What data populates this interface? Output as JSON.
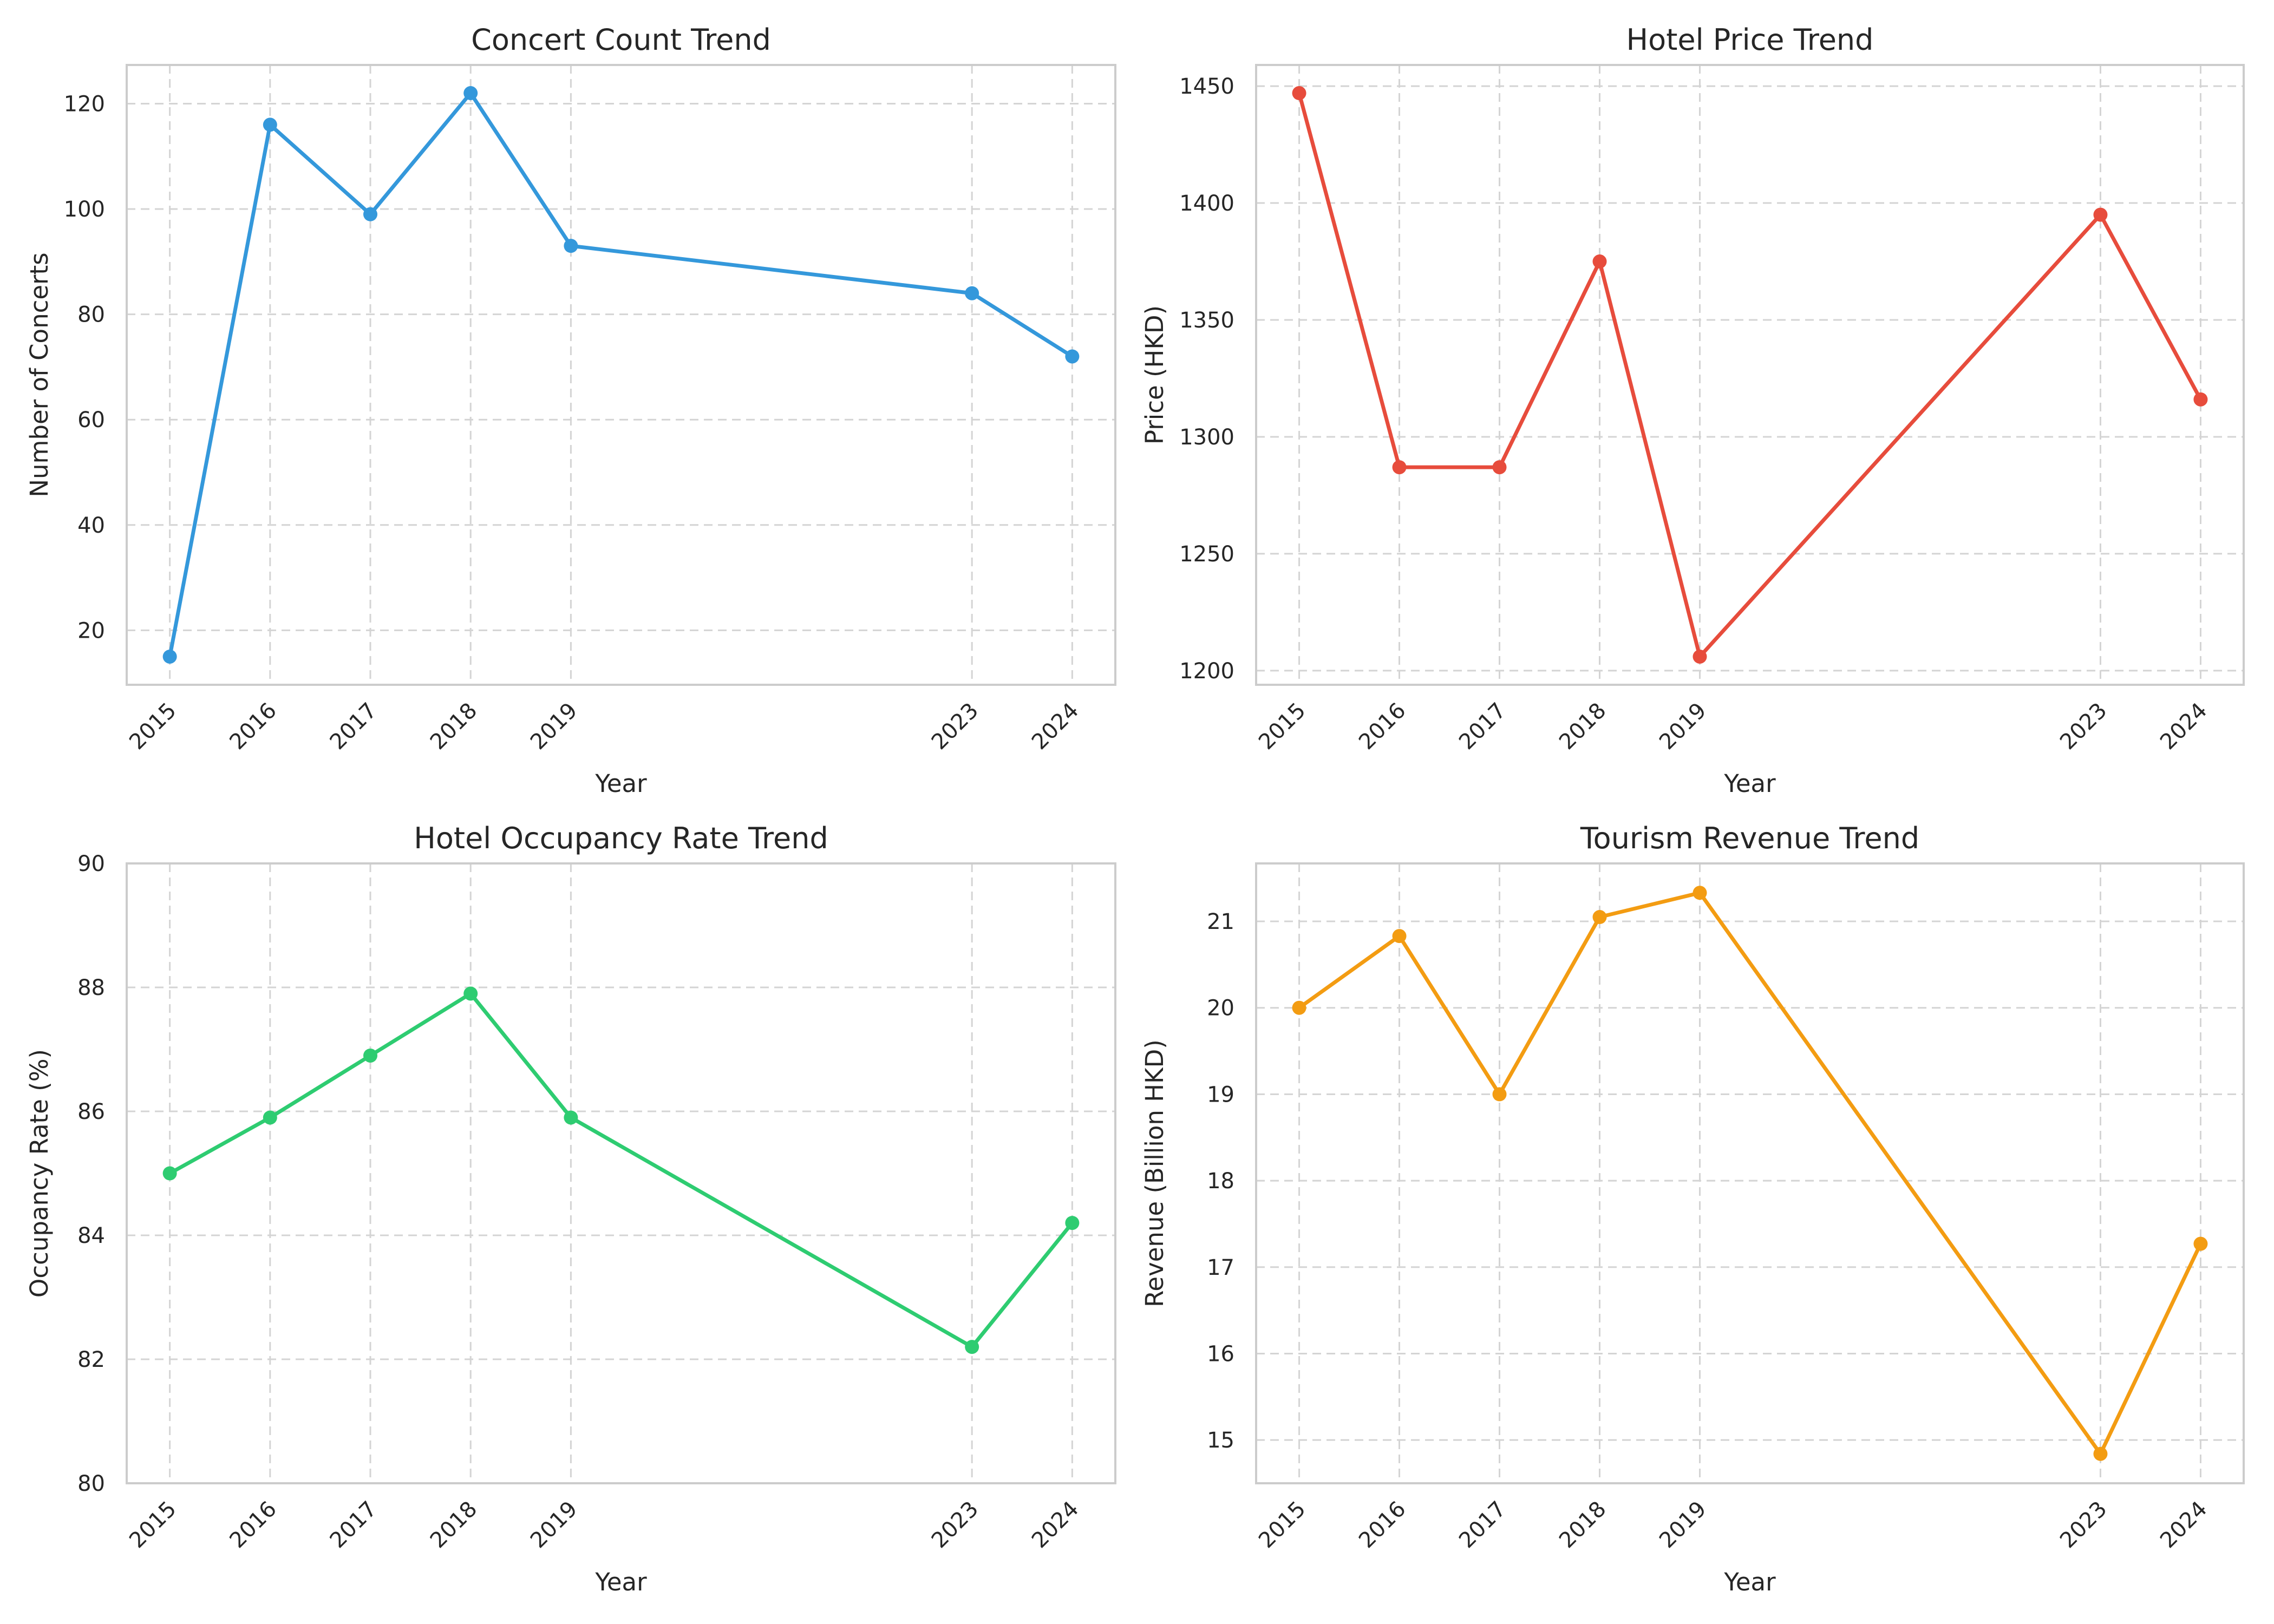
{
  "chart_data": [
    {
      "type": "line",
      "title": "Concert Count Trend",
      "xlabel": "Year",
      "ylabel": "Number of Concerts",
      "x": [
        2015,
        2016,
        2017,
        2018,
        2019,
        2023,
        2024
      ],
      "values": [
        15,
        116,
        99,
        122,
        93,
        84,
        72
      ],
      "ylim": [
        9.65,
        127.35
      ],
      "xlim": [
        2014.57,
        2024.43
      ],
      "yticks": [
        20,
        40,
        60,
        80,
        100,
        120
      ],
      "xticks": [
        2015,
        2016,
        2017,
        2018,
        2019,
        2023,
        2024
      ],
      "color": "#3498db",
      "grid": true,
      "marker": "circle"
    },
    {
      "type": "line",
      "title": "Hotel Price Trend",
      "xlabel": "Year",
      "ylabel": "Price (HKD)",
      "x": [
        2015,
        2016,
        2017,
        2018,
        2019,
        2023,
        2024
      ],
      "values": [
        1447,
        1287,
        1287,
        1375,
        1206,
        1395,
        1316
      ],
      "ylim": [
        1193.95,
        1459.05
      ],
      "xlim": [
        2014.57,
        2024.43
      ],
      "yticks": [
        1200,
        1250,
        1300,
        1350,
        1400,
        1450
      ],
      "xticks": [
        2015,
        2016,
        2017,
        2018,
        2019,
        2023,
        2024
      ],
      "color": "#e74c3c",
      "grid": true,
      "marker": "circle"
    },
    {
      "type": "line",
      "title": "Hotel Occupancy Rate Trend",
      "xlabel": "Year",
      "ylabel": "Occupancy Rate (%)",
      "x": [
        2015,
        2016,
        2017,
        2018,
        2019,
        2023,
        2024
      ],
      "values": [
        85.0,
        85.9,
        86.9,
        87.9,
        85.9,
        82.2,
        84.2
      ],
      "ylim": [
        80,
        90
      ],
      "xlim": [
        2014.57,
        2024.43
      ],
      "yticks": [
        80,
        82,
        84,
        86,
        88,
        90
      ],
      "xticks": [
        2015,
        2016,
        2017,
        2018,
        2019,
        2023,
        2024
      ],
      "color": "#2ecc71",
      "grid": true,
      "marker": "circle"
    },
    {
      "type": "line",
      "title": "Tourism Revenue Trend",
      "xlabel": "Year",
      "ylabel": "Revenue (Billion HKD)",
      "x": [
        2015,
        2016,
        2017,
        2018,
        2019,
        2023,
        2024
      ],
      "values": [
        20.0,
        20.83,
        19.0,
        21.05,
        21.33,
        14.84,
        17.27
      ],
      "ylim": [
        14.5,
        21.67
      ],
      "xlim": [
        2014.57,
        2024.43
      ],
      "yticks": [
        15,
        16,
        17,
        18,
        19,
        20,
        21
      ],
      "xticks": [
        2015,
        2016,
        2017,
        2018,
        2019,
        2023,
        2024
      ],
      "color": "#f39c12",
      "grid": true,
      "marker": "circle"
    }
  ]
}
